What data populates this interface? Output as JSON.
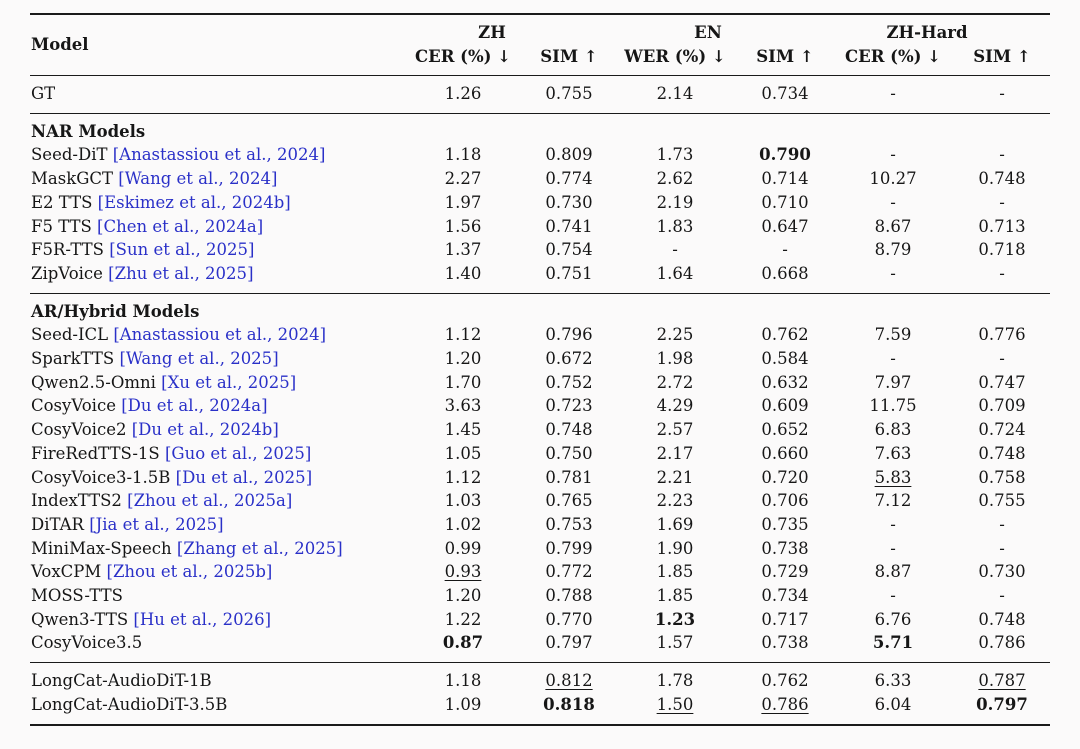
{
  "colors": {
    "citation_link": "#2a30c8",
    "text": "#161616",
    "rule": "#1a1a1a",
    "background": "#fbfafa",
    "emphasis_best": "bold",
    "emphasis_second_best": "underline"
  },
  "table": {
    "header": {
      "model_label": "Model",
      "groups": [
        {
          "label": "ZH",
          "metrics": [
            "CER (%) ↓",
            "SIM ↑"
          ]
        },
        {
          "label": "EN",
          "metrics": [
            "WER (%) ↓",
            "SIM ↑"
          ]
        },
        {
          "label": "ZH-Hard",
          "metrics": [
            "CER (%) ↓",
            "SIM ↑"
          ]
        }
      ]
    },
    "sections": [
      {
        "title": null,
        "rows": [
          {
            "model": "GT",
            "citation": null,
            "values": [
              "1.26",
              "0.755",
              "2.14",
              "0.734",
              "-",
              "-"
            ],
            "styles": [
              "",
              "",
              "",
              "",
              "",
              ""
            ]
          }
        ]
      },
      {
        "title": "NAR Models",
        "rows": [
          {
            "model": "Seed-DiT",
            "citation": "Anastassiou et al., 2024",
            "values": [
              "1.18",
              "0.809",
              "1.73",
              "0.790",
              "-",
              "-"
            ],
            "styles": [
              "",
              "",
              "",
              "bold",
              "",
              ""
            ]
          },
          {
            "model": "MaskGCT",
            "citation": "Wang et al., 2024",
            "values": [
              "2.27",
              "0.774",
              "2.62",
              "0.714",
              "10.27",
              "0.748"
            ],
            "styles": [
              "",
              "",
              "",
              "",
              "",
              ""
            ]
          },
          {
            "model": "E2 TTS",
            "citation": "Eskimez et al., 2024b",
            "values": [
              "1.97",
              "0.730",
              "2.19",
              "0.710",
              "-",
              "-"
            ],
            "styles": [
              "",
              "",
              "",
              "",
              "",
              ""
            ]
          },
          {
            "model": "F5 TTS",
            "citation": "Chen et al., 2024a",
            "values": [
              "1.56",
              "0.741",
              "1.83",
              "0.647",
              "8.67",
              "0.713"
            ],
            "styles": [
              "",
              "",
              "",
              "",
              "",
              ""
            ]
          },
          {
            "model": "F5R-TTS",
            "citation": "Sun et al., 2025",
            "values": [
              "1.37",
              "0.754",
              "-",
              "-",
              "8.79",
              "0.718"
            ],
            "styles": [
              "",
              "",
              "",
              "",
              "",
              ""
            ]
          },
          {
            "model": "ZipVoice",
            "citation": "Zhu et al., 2025",
            "values": [
              "1.40",
              "0.751",
              "1.64",
              "0.668",
              "-",
              "-"
            ],
            "styles": [
              "",
              "",
              "",
              "",
              "",
              ""
            ]
          }
        ]
      },
      {
        "title": "AR/Hybrid Models",
        "rows": [
          {
            "model": "Seed-ICL",
            "citation": "Anastassiou et al., 2024",
            "values": [
              "1.12",
              "0.796",
              "2.25",
              "0.762",
              "7.59",
              "0.776"
            ],
            "styles": [
              "",
              "",
              "",
              "",
              "",
              ""
            ]
          },
          {
            "model": "SparkTTS",
            "citation": "Wang et al., 2025",
            "values": [
              "1.20",
              "0.672",
              "1.98",
              "0.584",
              "-",
              "-"
            ],
            "styles": [
              "",
              "",
              "",
              "",
              "",
              ""
            ]
          },
          {
            "model": "Qwen2.5-Omni",
            "citation": "Xu et al., 2025",
            "values": [
              "1.70",
              "0.752",
              "2.72",
              "0.632",
              "7.97",
              "0.747"
            ],
            "styles": [
              "",
              "",
              "",
              "",
              "",
              ""
            ]
          },
          {
            "model": "CosyVoice",
            "citation": "Du et al., 2024a",
            "values": [
              "3.63",
              "0.723",
              "4.29",
              "0.609",
              "11.75",
              "0.709"
            ],
            "styles": [
              "",
              "",
              "",
              "",
              "",
              ""
            ]
          },
          {
            "model": "CosyVoice2",
            "citation": "Du et al., 2024b",
            "values": [
              "1.45",
              "0.748",
              "2.57",
              "0.652",
              "6.83",
              "0.724"
            ],
            "styles": [
              "",
              "",
              "",
              "",
              "",
              ""
            ]
          },
          {
            "model": "FireRedTTS-1S",
            "citation": "Guo et al., 2025",
            "values": [
              "1.05",
              "0.750",
              "2.17",
              "0.660",
              "7.63",
              "0.748"
            ],
            "styles": [
              "",
              "",
              "",
              "",
              "",
              ""
            ]
          },
          {
            "model": "CosyVoice3-1.5B",
            "citation": "Du et al., 2025",
            "values": [
              "1.12",
              "0.781",
              "2.21",
              "0.720",
              "5.83",
              "0.758"
            ],
            "styles": [
              "",
              "",
              "",
              "",
              "underline",
              ""
            ]
          },
          {
            "model": "IndexTTS2",
            "citation": "Zhou et al., 2025a",
            "values": [
              "1.03",
              "0.765",
              "2.23",
              "0.706",
              "7.12",
              "0.755"
            ],
            "styles": [
              "",
              "",
              "",
              "",
              "",
              ""
            ]
          },
          {
            "model": "DiTAR",
            "citation": "Jia et al., 2025",
            "values": [
              "1.02",
              "0.753",
              "1.69",
              "0.735",
              "-",
              "-"
            ],
            "styles": [
              "",
              "",
              "",
              "",
              "",
              ""
            ]
          },
          {
            "model": "MiniMax-Speech",
            "citation": "Zhang et al., 2025",
            "values": [
              "0.99",
              "0.799",
              "1.90",
              "0.738",
              "-",
              "-"
            ],
            "styles": [
              "",
              "",
              "",
              "",
              "",
              ""
            ]
          },
          {
            "model": "VoxCPM",
            "citation": "Zhou et al., 2025b",
            "values": [
              "0.93",
              "0.772",
              "1.85",
              "0.729",
              "8.87",
              "0.730"
            ],
            "styles": [
              "underline",
              "",
              "",
              "",
              "",
              ""
            ]
          },
          {
            "model": "MOSS-TTS",
            "citation": null,
            "values": [
              "1.20",
              "0.788",
              "1.85",
              "0.734",
              "-",
              "-"
            ],
            "styles": [
              "",
              "",
              "",
              "",
              "",
              ""
            ]
          },
          {
            "model": "Qwen3-TTS",
            "citation": "Hu et al., 2026",
            "values": [
              "1.22",
              "0.770",
              "1.23",
              "0.717",
              "6.76",
              "0.748"
            ],
            "styles": [
              "",
              "",
              "bold",
              "",
              "",
              ""
            ]
          },
          {
            "model": "CosyVoice3.5",
            "citation": null,
            "values": [
              "0.87",
              "0.797",
              "1.57",
              "0.738",
              "5.71",
              "0.786"
            ],
            "styles": [
              "bold",
              "",
              "",
              "",
              "bold",
              ""
            ]
          }
        ]
      },
      {
        "title": null,
        "rows": [
          {
            "model": "LongCat-AudioDiT-1B",
            "citation": null,
            "values": [
              "1.18",
              "0.812",
              "1.78",
              "0.762",
              "6.33",
              "0.787"
            ],
            "styles": [
              "",
              "underline",
              "",
              "",
              "",
              "underline"
            ]
          },
          {
            "model": "LongCat-AudioDiT-3.5B",
            "citation": null,
            "values": [
              "1.09",
              "0.818",
              "1.50",
              "0.786",
              "6.04",
              "0.797"
            ],
            "styles": [
              "",
              "bold",
              "underline",
              "underline",
              "",
              "bold"
            ]
          }
        ]
      }
    ]
  }
}
